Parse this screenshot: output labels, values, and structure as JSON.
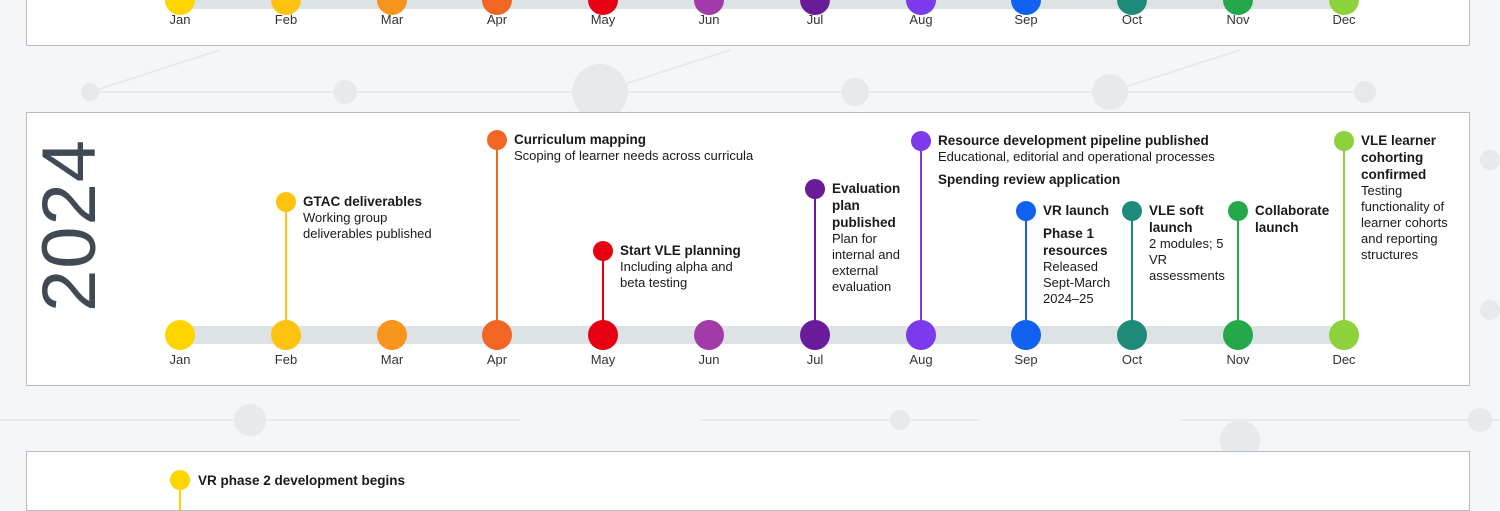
{
  "colors": [
    "#ffd500",
    "#ffc20e",
    "#f7941d",
    "#f26522",
    "#e60012",
    "#a23aa9",
    "#6a1b9a",
    "#7c3aed",
    "#1061f0",
    "#1e8a7a",
    "#23a84a",
    "#8dd13b"
  ],
  "months": [
    "Jan",
    "Feb",
    "Mar",
    "Apr",
    "May",
    "Jun",
    "Jul",
    "Aug",
    "Sep",
    "Oct",
    "Nov",
    "Dec"
  ],
  "year": "2024",
  "events": [
    {
      "month": 1,
      "title": "GTAC deliverables",
      "desc": "Working group deliverables published"
    },
    {
      "month": 3,
      "title": "Curriculum mapping",
      "desc": "Scoping of learner needs across curricula"
    },
    {
      "month": 4,
      "title": "Start VLE planning",
      "desc": "Including alpha and beta testing"
    },
    {
      "month": 6,
      "title": "Evaluation plan published",
      "desc": "Plan for internal and external evaluation"
    },
    {
      "month": 7,
      "title": "Resource development pipeline published",
      "desc": "Educational, editorial and operational processes",
      "title2": "Spending review application"
    },
    {
      "month": 8,
      "title": "VR launch",
      "desc": "",
      "title2": "Phase 1 resources",
      "desc2": "Released Sept-March 2024–25"
    },
    {
      "month": 9,
      "title": "VLE soft launch",
      "desc": "2 modules; 5 VR assessments"
    },
    {
      "month": 10,
      "title": "Collaborate launch",
      "desc": ""
    },
    {
      "month": 11,
      "title": "VLE learner cohorting confirmed",
      "desc": "Testing functionality of learner cohorts and reporting structures"
    }
  ],
  "next_year_event": {
    "title": "VR phase 2 development begins"
  }
}
